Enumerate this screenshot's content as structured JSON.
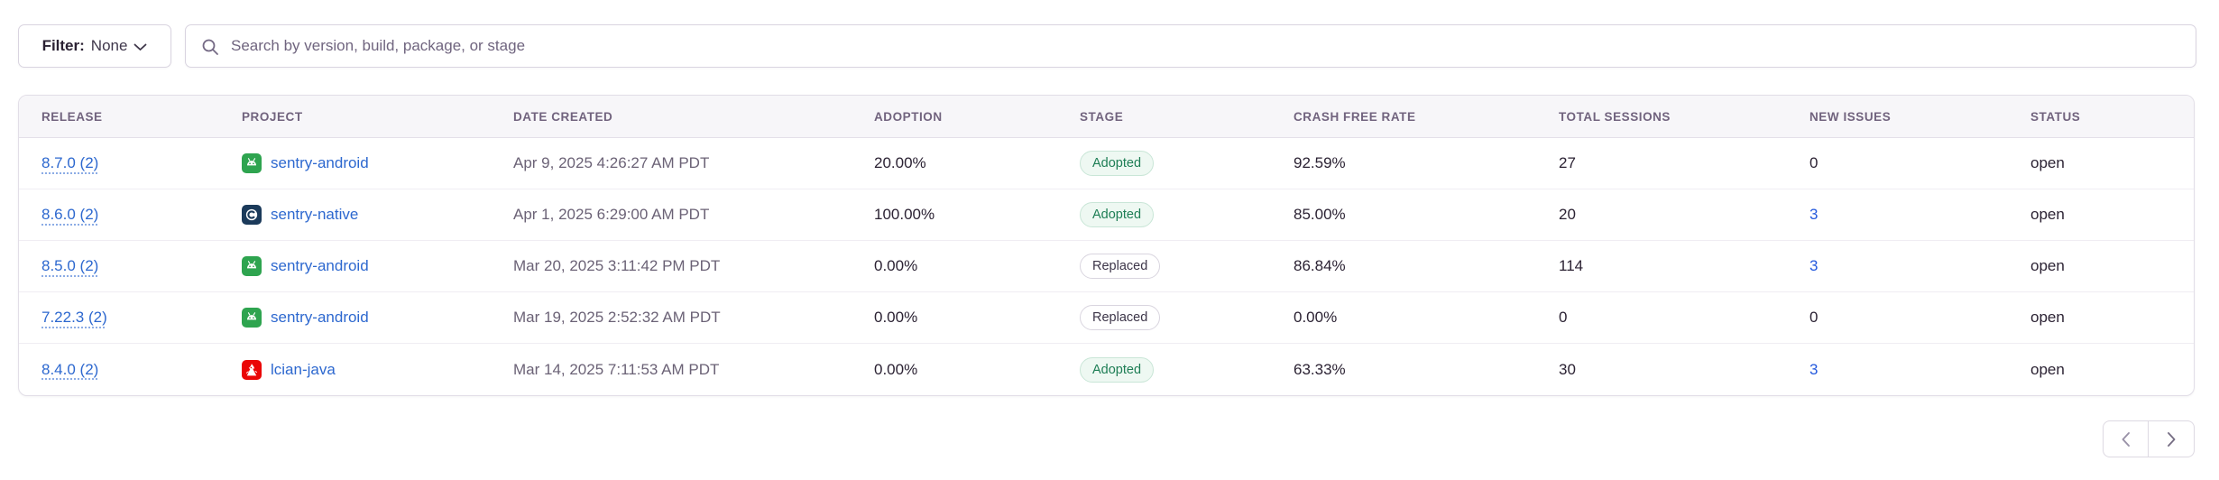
{
  "topbar": {
    "filter_label": "Filter:",
    "filter_value": "None",
    "search_placeholder": "Search by version, build, package, or stage"
  },
  "table": {
    "columns": [
      "RELEASE",
      "PROJECT",
      "DATE CREATED",
      "ADOPTION",
      "STAGE",
      "CRASH FREE RATE",
      "TOTAL SESSIONS",
      "NEW ISSUES",
      "STATUS"
    ],
    "rows": [
      {
        "release": "8.7.0 (2)",
        "project": {
          "name": "sentry-android",
          "icon": "android"
        },
        "date_created": "Apr 9, 2025 4:26:27 AM PDT",
        "adoption": "20.00%",
        "stage": "Adopted",
        "crash_free_rate": "92.59%",
        "total_sessions": "27",
        "new_issues": "0",
        "new_issues_link": false,
        "status": "open"
      },
      {
        "release": "8.6.0 (2)",
        "project": {
          "name": "sentry-native",
          "icon": "c"
        },
        "date_created": "Apr 1, 2025 6:29:00 AM PDT",
        "adoption": "100.00%",
        "stage": "Adopted",
        "crash_free_rate": "85.00%",
        "total_sessions": "20",
        "new_issues": "3",
        "new_issues_link": true,
        "status": "open"
      },
      {
        "release": "8.5.0 (2)",
        "project": {
          "name": "sentry-android",
          "icon": "android"
        },
        "date_created": "Mar 20, 2025 3:11:42 PM PDT",
        "adoption": "0.00%",
        "stage": "Replaced",
        "crash_free_rate": "86.84%",
        "total_sessions": "114",
        "new_issues": "3",
        "new_issues_link": true,
        "status": "open"
      },
      {
        "release": "7.22.3 (2)",
        "project": {
          "name": "sentry-android",
          "icon": "android"
        },
        "date_created": "Mar 19, 2025 2:52:32 AM PDT",
        "adoption": "0.00%",
        "stage": "Replaced",
        "crash_free_rate": "0.00%",
        "total_sessions": "0",
        "new_issues": "0",
        "new_issues_link": false,
        "status": "open"
      },
      {
        "release": "8.4.0 (2)",
        "project": {
          "name": "lcian-java",
          "icon": "java"
        },
        "date_created": "Mar 14, 2025 7:11:53 AM PDT",
        "adoption": "0.00%",
        "stage": "Adopted",
        "crash_free_rate": "63.33%",
        "total_sessions": "30",
        "new_issues": "3",
        "new_issues_link": true,
        "status": "open"
      }
    ]
  },
  "pagination": {
    "prev_icon": "chevron-left",
    "next_icon": "chevron-right"
  },
  "colors": {
    "link_blue": "#2d68cf",
    "new_issues_blue": "#2459dd",
    "adopted_green": "#1e7e55",
    "android_green": "#2ea44f",
    "native_navy": "#1b3a5a",
    "java_red": "#ea0606",
    "header_bg": "#f7f6f9"
  }
}
